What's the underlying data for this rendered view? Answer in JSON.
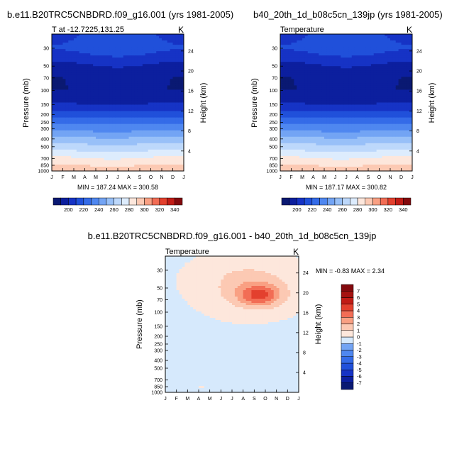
{
  "chart_data": [
    {
      "type": "heatmap",
      "title": "b.e11.B20TRC5CNBDRD.f09_g16.001 (yrs 1981-2005)",
      "subtitle_left": "T at -12.7225,131.25",
      "units": "K",
      "ylabel": "Pressure (mb)",
      "ylabel_right": "Height (km)",
      "x_tick_labels": [
        "J",
        "F",
        "M",
        "A",
        "M",
        "J",
        "J",
        "A",
        "S",
        "O",
        "N",
        "D",
        "J"
      ],
      "y_ticks": [
        30,
        50,
        70,
        100,
        150,
        200,
        250,
        300,
        400,
        500,
        700,
        850,
        1000
      ],
      "ylim": [
        1000,
        20
      ],
      "height_ticks": [
        4,
        8,
        12,
        16,
        20,
        24
      ],
      "min": 187.24,
      "max": 300.58,
      "minmax_label": "MIN = 187.24 MAX = 300.58",
      "profile": {
        "p": [
          20,
          30,
          40,
          50,
          70,
          100,
          150,
          200,
          250,
          300,
          400,
          500,
          600,
          700,
          850,
          1000
        ],
        "t": [
          209,
          212,
          204,
          196,
          191,
          190,
          201,
          216,
          228,
          238,
          254,
          265,
          274,
          282,
          291,
          298
        ]
      },
      "seasonal": {
        "months": [
          0,
          1,
          2,
          3,
          4,
          5,
          6,
          7,
          8,
          9,
          10,
          11,
          12
        ],
        "dt": [
          1,
          1,
          0,
          -1,
          -2,
          -3,
          -3,
          -2,
          -1,
          0,
          1,
          1,
          1
        ],
        "upper_dt": [
          -1,
          -1,
          0,
          2,
          3,
          4,
          5,
          4,
          3,
          2,
          0,
          -1,
          -1
        ]
      }
    },
    {
      "type": "heatmap",
      "title": "b40_20th_1d_b08c5cn_139jp (yrs 1981-2005)",
      "subtitle_left": "Temperature",
      "units": "K",
      "ylabel": "Pressure (mb)",
      "ylabel_right": "Height (km)",
      "x_tick_labels": [
        "J",
        "F",
        "M",
        "A",
        "M",
        "J",
        "J",
        "A",
        "S",
        "O",
        "N",
        "D",
        "J"
      ],
      "y_ticks": [
        30,
        50,
        70,
        100,
        150,
        200,
        250,
        300,
        400,
        500,
        700,
        850,
        1000
      ],
      "ylim": [
        1000,
        20
      ],
      "height_ticks": [
        4,
        8,
        12,
        16,
        20,
        24
      ],
      "min": 187.17,
      "max": 300.82,
      "minmax_label": "MIN = 187.17 MAX = 300.82",
      "profile": {
        "p": [
          20,
          30,
          40,
          50,
          70,
          100,
          150,
          200,
          250,
          300,
          400,
          500,
          600,
          700,
          850,
          1000
        ],
        "t": [
          209,
          212,
          204,
          196,
          191,
          190,
          201,
          216,
          228,
          238,
          254,
          265,
          274,
          282,
          291,
          298
        ]
      },
      "seasonal": {
        "months": [
          0,
          1,
          2,
          3,
          4,
          5,
          6,
          7,
          8,
          9,
          10,
          11,
          12
        ],
        "dt": [
          1,
          1,
          0,
          -1,
          -2,
          -3,
          -3,
          -2,
          -1,
          0,
          1,
          1,
          1
        ],
        "upper_dt": [
          -1,
          -1,
          0,
          2,
          3,
          4,
          5,
          4,
          3,
          2,
          0,
          -1,
          -1
        ]
      }
    },
    {
      "type": "heatmap",
      "title": "b.e11.B20TRC5CNBDRD.f09_g16.001 - b40_20th_1d_b08c5cn_139jp",
      "subtitle_left": "Temperature",
      "units": "K",
      "ylabel": "Pressure (mb)",
      "ylabel_right": "Height (km)",
      "x_tick_labels": [
        "J",
        "F",
        "M",
        "A",
        "M",
        "J",
        "J",
        "A",
        "S",
        "O",
        "N",
        "D",
        "J"
      ],
      "y_ticks": [
        30,
        50,
        70,
        100,
        150,
        200,
        250,
        300,
        400,
        500,
        700,
        850,
        1000
      ],
      "ylim": [
        1000,
        20
      ],
      "height_ticks": [
        4,
        8,
        12,
        16,
        20,
        24
      ],
      "min": -0.83,
      "max": 2.34,
      "minmax_label": "MIN =  -0.83 MAX =   2.34",
      "difference_field": {
        "background_value": -0.3,
        "blobs": [
          {
            "month": 7.5,
            "p": 50,
            "value": 0.9,
            "month_radius": 5.5,
            "p_radius_decades": 0.42
          },
          {
            "month": 7.0,
            "p": 35,
            "value": 0.6,
            "month_radius": 4.5,
            "p_radius_decades": 0.25
          },
          {
            "month": 8.3,
            "p": 60,
            "value": 1.7,
            "month_radius": 2.6,
            "p_radius_decades": 0.18
          },
          {
            "month": 8.5,
            "p": 62,
            "value": 2.2,
            "month_radius": 1.6,
            "p_radius_decades": 0.12
          },
          {
            "month": 3.3,
            "p": 850,
            "value": 0.5,
            "month_radius": 0.4,
            "p_radius_decades": 0.03
          }
        ]
      }
    }
  ],
  "colorbar_abs": {
    "levels": [
      190,
      200,
      210,
      220,
      230,
      240,
      250,
      260,
      270,
      280,
      290,
      300,
      310,
      320,
      330,
      340
    ],
    "labels": [
      "200",
      "220",
      "240",
      "260",
      "280",
      "300",
      "320",
      "340"
    ],
    "colors": [
      "#0a1972",
      "#0c1f9e",
      "#1633c5",
      "#2050da",
      "#346be8",
      "#4f87f0",
      "#73a4f4",
      "#98c0f8",
      "#bdd8fb",
      "#ddecfd",
      "#fde7dc",
      "#fcc9b3",
      "#f9a083",
      "#f26d55",
      "#e3402e",
      "#c11c16",
      "#83090d"
    ]
  },
  "colorbar_diff": {
    "levels": [
      -7,
      -6,
      -5,
      -4,
      -3,
      -2,
      -1,
      0,
      1,
      2,
      3,
      4,
      5,
      6,
      7
    ],
    "labels": [
      "-7",
      "-6",
      "-5",
      "-4",
      "-3",
      "-2",
      "-1",
      "0",
      "1",
      "2",
      "3",
      "4",
      "5",
      "6",
      "7"
    ],
    "colors": [
      "#0a1972",
      "#0c1f9e",
      "#1633c5",
      "#2050da",
      "#346be8",
      "#4f87f0",
      "#73a4f4",
      "#d6e9fc",
      "#fde7dc",
      "#fcc9b3",
      "#f9a083",
      "#f26d55",
      "#e3402e",
      "#c11c16",
      "#a51210",
      "#83090d"
    ]
  }
}
